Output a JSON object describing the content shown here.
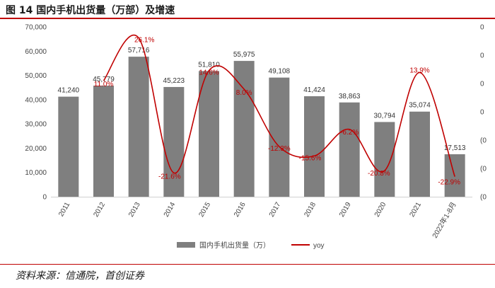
{
  "figure": {
    "title": "图 14 国内手机出货量（万部）及增速",
    "source": "资料来源：信通院，首创证券"
  },
  "colors": {
    "bar": "#7f7f7f",
    "line": "#c00000",
    "title_rule": "#c00000"
  },
  "chart_data": {
    "type": "bar",
    "categories": [
      "2011",
      "2012",
      "2013",
      "2014",
      "2015",
      "2016",
      "2017",
      "2018",
      "2019",
      "2020",
      "2021",
      "2022年1-8月"
    ],
    "series": [
      {
        "name": "国内手机出货量（万）",
        "type": "bar",
        "axis": "left",
        "values": [
          41240,
          45779,
          57716,
          45223,
          51810,
          55975,
          49108,
          41424,
          38863,
          30794,
          35074,
          17513
        ],
        "labels": [
          "41,240",
          "45,779",
          "57,716",
          "45,223",
          "51,810",
          "55,975",
          "49,108",
          "41,424",
          "38,863",
          "30,794",
          "35,074",
          "17,513"
        ]
      },
      {
        "name": "yoy",
        "type": "line",
        "axis": "right",
        "values": [
          null,
          11.0,
          26.1,
          -21.6,
          14.6,
          8.0,
          -12.3,
          -15.6,
          -6.2,
          -20.8,
          13.9,
          -22.9
        ],
        "labels": [
          "",
          "11.0%",
          "26.1%",
          "-21.6%",
          "14.6%",
          "8.0%",
          "-12.3%",
          "-15.6%",
          "-6.2%",
          "-20.8%",
          "13.9%",
          "-22.9%"
        ]
      }
    ],
    "y_left": {
      "range": [
        0,
        70000
      ],
      "ticks": [
        "0",
        "10,000",
        "20,000",
        "30,000",
        "40,000",
        "50,000",
        "60,000",
        "70,000"
      ]
    },
    "y_right": {
      "range": [
        -30,
        30
      ],
      "ticks": [
        "(0",
        "(0",
        "(0",
        "0",
        "0",
        "0",
        "0"
      ]
    },
    "legend": {
      "position": "bottom",
      "items": [
        "国内手机出货量（万）",
        "yoy"
      ]
    },
    "grid": false
  }
}
